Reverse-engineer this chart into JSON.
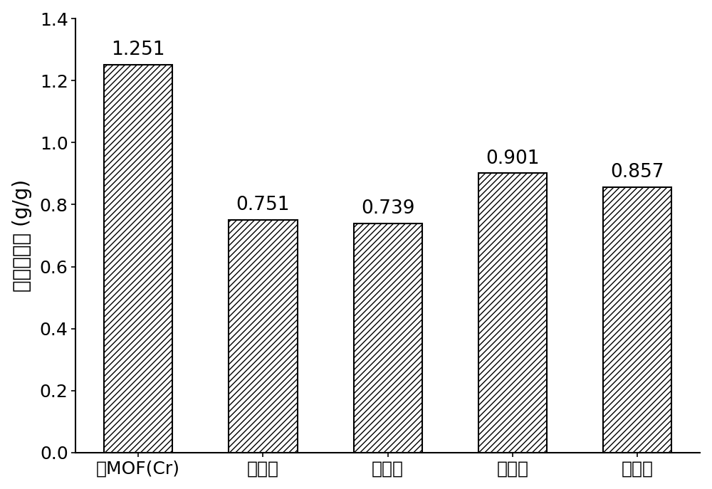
{
  "categories": [
    "绯MOF(Cr)",
    "案例一",
    "案例二",
    "案例三",
    "案例四"
  ],
  "values": [
    1.251,
    0.751,
    0.739,
    0.901,
    0.857
  ],
  "bar_color": "#ffffff",
  "bar_edgecolor": "#000000",
  "hatch": "////",
  "ylabel": "水吸附容量 (g/g)",
  "ylim": [
    0.0,
    1.4
  ],
  "yticks": [
    0.0,
    0.2,
    0.4,
    0.6,
    0.8,
    1.0,
    1.2,
    1.4
  ],
  "label_fontsize": 20,
  "tick_fontsize": 18,
  "value_fontsize": 19,
  "bar_width": 0.55,
  "background_color": "#ffffff",
  "linewidth": 1.5
}
